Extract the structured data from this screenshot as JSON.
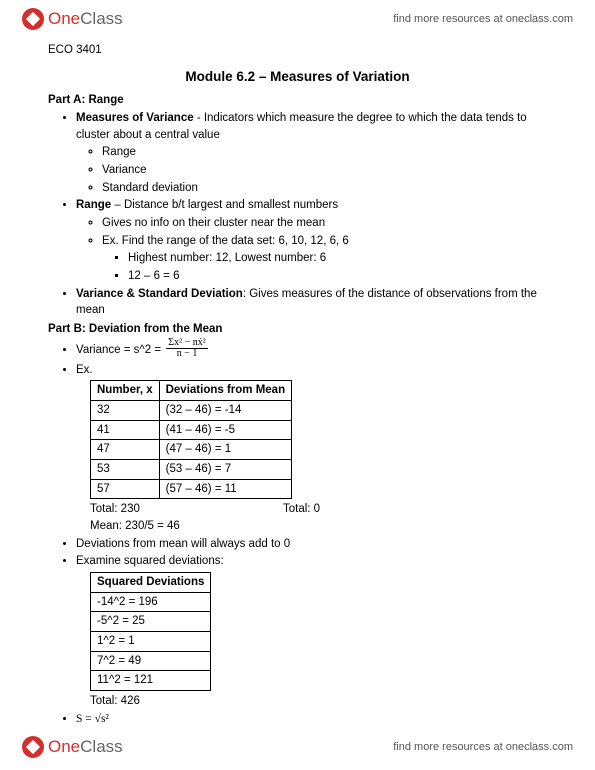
{
  "brand": {
    "one": "One",
    "class": "Class"
  },
  "header_link": "find more resources at oneclass.com",
  "footer_link": "find more resources at oneclass.com",
  "course": "ECO 3401",
  "title": "Module 6.2 – Measures of Variation",
  "partA": {
    "header": "Part A: Range",
    "mv_label": "Measures of Variance",
    "mv_def": " - Indicators which measure the degree to which the data tends to cluster about a central value",
    "sub1": "Range",
    "sub2": "Variance",
    "sub3": "Standard deviation",
    "range_label": "Range",
    "range_def": " – Distance b/t largest and smallest numbers",
    "range_s1": "Gives no info on their cluster near the mean",
    "range_s2": "Ex. Find the range of the data set: 6, 10, 12, 6, 6",
    "range_s2a": "Highest number: 12, Lowest number: 6",
    "range_s2b": "12 – 6 = 6",
    "vsd_label": "Variance & Standard Deviation",
    "vsd_def": ": Gives measures of the distance of observations from the mean"
  },
  "partB": {
    "header": "Part B: Deviation from the Mean",
    "var_lhs": "Variance = s^2 = ",
    "frac_num": "Σx² − nẋ²",
    "frac_den": "n − 1",
    "ex_label": "Ex.",
    "table1": {
      "col1": "Number, x",
      "col2": "Deviations from Mean",
      "rows": [
        {
          "n": "32",
          "d": "(32 – 46) = -14"
        },
        {
          "n": "41",
          "d": "(41 – 46) = -5"
        },
        {
          "n": "47",
          "d": "(47 – 46) = 1"
        },
        {
          "n": "53",
          "d": "(53 – 46) = 7"
        },
        {
          "n": "57",
          "d": "(57 – 46) = 11"
        }
      ]
    },
    "tot_left": "Total: 230",
    "tot_right": "Total: 0",
    "mean_line": "Mean: 230/5 = 46",
    "dev_note": "Deviations from mean will always add to 0",
    "exam_sq": "Examine squared deviations:",
    "table2": {
      "col": "Squared Deviations",
      "rows": [
        "-14^2 = 196",
        "-5^2 = 25",
        "1^2 = 1",
        "7^2 = 49",
        "11^2 = 121"
      ]
    },
    "tot2": "Total: 426",
    "s_formula": "S = √s²"
  }
}
